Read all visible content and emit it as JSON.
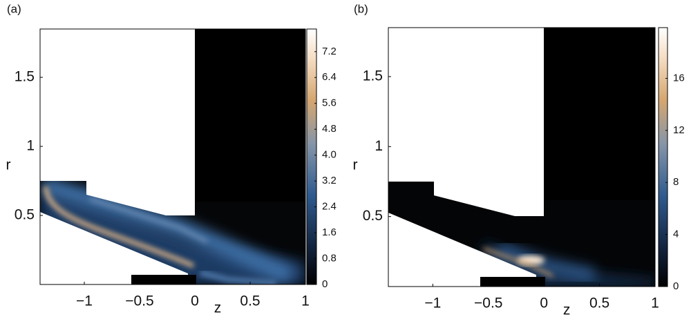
{
  "chart_data": [
    {
      "type": "heatmap",
      "panel_label": "(a)",
      "xlabel": "z",
      "ylabel": "r",
      "xlim": [
        -1.4,
        1
      ],
      "ylim": [
        0,
        1.85
      ],
      "xticks": [
        {
          "value": -1,
          "label": "−1"
        },
        {
          "value": -0.5,
          "label": "−0.5"
        },
        0,
        0.5,
        1
      ],
      "yticks": [
        0.5,
        1,
        1.5
      ],
      "clim": [
        0,
        7.9
      ],
      "cticks": [
        0,
        0.8,
        1.6,
        2.4,
        3.2,
        {
          "value": 4,
          "label": "4.0"
        },
        4.8,
        5.6,
        6.4,
        7.2
      ]
    },
    {
      "type": "heatmap",
      "panel_label": "(b)",
      "xlabel": "z",
      "ylabel": "r",
      "xlim": [
        -1.4,
        1
      ],
      "ylim": [
        0,
        1.85
      ],
      "xticks": [
        {
          "value": -1,
          "label": "−1"
        },
        {
          "value": -0.5,
          "label": "−0.5"
        },
        0,
        0.5,
        1
      ],
      "yticks": [
        0.5,
        1,
        1.5
      ],
      "clim": [
        0,
        19.9
      ],
      "cticks": [
        0,
        4,
        8,
        12,
        16
      ]
    }
  ]
}
